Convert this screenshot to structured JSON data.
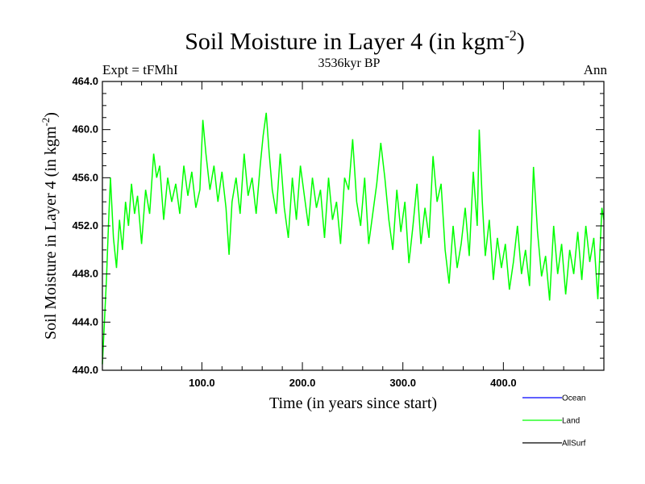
{
  "chart_data": {
    "type": "line",
    "title": "Soil Moisture in Layer 4 (in kgm",
    "title_exponent": "-2",
    "title_close": ")",
    "subtitle": "3536kyr BP",
    "left_label": "Expt = tFMhI",
    "right_label": "Ann",
    "xlabel": "Time (in years since start)",
    "ylabel": "Soil Moisture in Layer 4 (in kgm",
    "ylabel_exponent": "-2",
    "ylabel_close": ")",
    "xlim": [
      1,
      500
    ],
    "ylim": [
      440.0,
      464.0
    ],
    "x_ticks": [
      100.0,
      200.0,
      300.0,
      400.0
    ],
    "x_tick_labels": [
      "100.0",
      "200.0",
      "300.0",
      "400.0"
    ],
    "y_ticks": [
      440.0,
      444.0,
      448.0,
      452.0,
      456.0,
      460.0,
      464.0
    ],
    "y_tick_labels": [
      "440.0",
      "444.0",
      "448.0",
      "452.0",
      "456.0",
      "460.0",
      "464.0"
    ],
    "legend": [
      {
        "name": "Ocean",
        "color": "#0000ff"
      },
      {
        "name": "Land",
        "color": "#00ff00"
      },
      {
        "name": "AllSurf",
        "color": "#000000"
      }
    ],
    "series": [
      {
        "name": "Land",
        "color": "#00ff00",
        "x": [
          1,
          3,
          5,
          7,
          9,
          12,
          15,
          18,
          21,
          24,
          27,
          30,
          33,
          36,
          40,
          44,
          48,
          52,
          55,
          58,
          62,
          66,
          70,
          74,
          78,
          82,
          86,
          90,
          94,
          98,
          101,
          104,
          108,
          112,
          116,
          120,
          124,
          127,
          130,
          134,
          138,
          142,
          146,
          150,
          154,
          158,
          161,
          164,
          167,
          170,
          174,
          178,
          182,
          186,
          190,
          194,
          198,
          202,
          206,
          210,
          214,
          218,
          222,
          226,
          230,
          234,
          238,
          242,
          246,
          250,
          254,
          258,
          262,
          266,
          270,
          274,
          278,
          282,
          286,
          290,
          294,
          298,
          302,
          306,
          310,
          314,
          318,
          322,
          326,
          330,
          334,
          338,
          342,
          346,
          350,
          354,
          358,
          362,
          366,
          370,
          374,
          376,
          379,
          382,
          386,
          390,
          394,
          398,
          402,
          406,
          410,
          414,
          418,
          422,
          426,
          430,
          434,
          438,
          442,
          446,
          450,
          454,
          458,
          462,
          466,
          470,
          474,
          478,
          482,
          486,
          490,
          494,
          498,
          500
        ],
        "values": [
          440.5,
          444.0,
          447.5,
          452.0,
          456.0,
          451.0,
          448.5,
          452.5,
          450.0,
          454.0,
          452.0,
          455.5,
          453.0,
          454.5,
          450.5,
          455.0,
          453.0,
          458.0,
          456.0,
          457.0,
          452.5,
          456.0,
          454.0,
          455.5,
          453.0,
          457.0,
          454.5,
          456.5,
          453.5,
          455.0,
          460.8,
          458.0,
          455.0,
          457.0,
          454.0,
          456.5,
          453.5,
          449.6,
          454.0,
          456.0,
          453.0,
          458.0,
          454.5,
          456.0,
          453.0,
          457.0,
          459.5,
          461.4,
          458.0,
          455.0,
          453.0,
          458.0,
          453.5,
          451.0,
          456.0,
          452.5,
          457.0,
          454.5,
          452.0,
          456.0,
          453.5,
          455.0,
          451.0,
          456.0,
          452.5,
          454.0,
          450.5,
          456.0,
          455.0,
          459.2,
          454.0,
          452.0,
          456.0,
          450.5,
          453.0,
          455.5,
          458.9,
          456.0,
          452.5,
          450.0,
          455.0,
          451.5,
          454.0,
          448.9,
          452.0,
          455.5,
          450.5,
          453.5,
          451.0,
          457.8,
          454.0,
          455.5,
          450.0,
          447.2,
          452.0,
          448.5,
          450.5,
          453.5,
          449.5,
          456.5,
          452.0,
          460.0,
          454.0,
          449.5,
          452.5,
          447.5,
          451.0,
          448.5,
          450.5,
          446.7,
          449.0,
          452.0,
          448.0,
          450.0,
          447.0,
          456.9,
          451.5,
          447.8,
          449.5,
          445.8,
          452.0,
          448.0,
          450.5,
          446.3,
          450.0,
          448.0,
          451.5,
          447.5,
          452.0,
          449.0,
          451.0,
          445.9,
          453.5,
          452.5
        ]
      }
    ]
  }
}
